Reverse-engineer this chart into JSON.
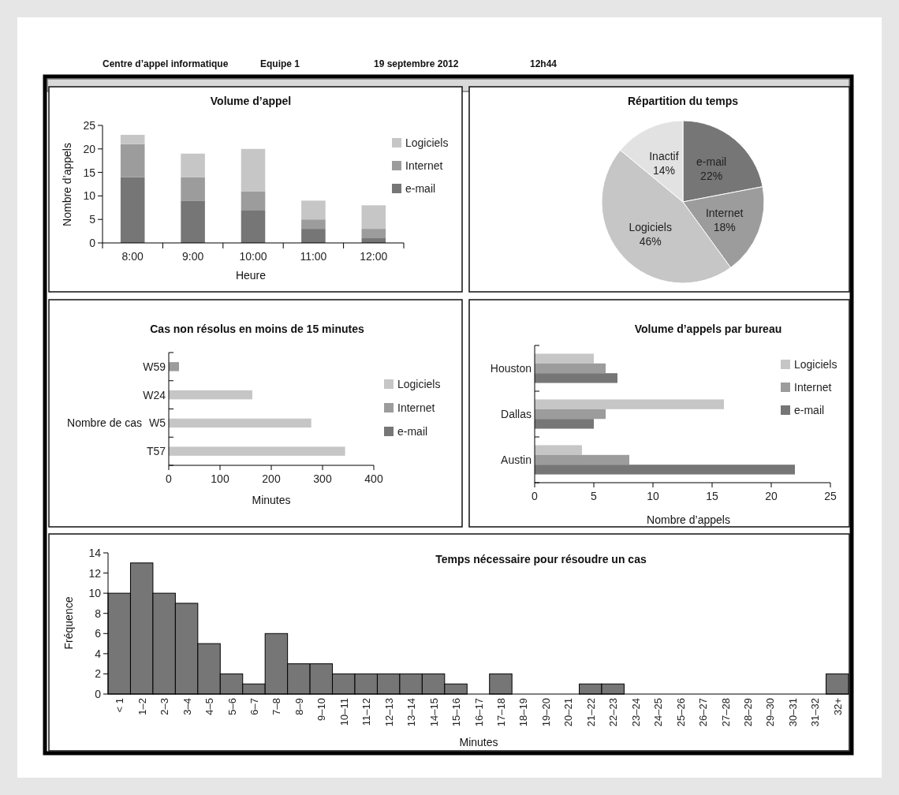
{
  "chart_data": [
    {
      "type": "other",
      "annotations": [
        "Centre d’appel informatique",
        "Equipe 1",
        "19 septembre 2012",
        "12h44"
      ]
    },
    {
      "type": "bar",
      "title": "Volume d’appel",
      "xlabel": "Heure",
      "ylabel": "Nombre d’appels",
      "categories": [
        "8:00",
        "9:00",
        "10:00",
        "11:00",
        "12:00"
      ],
      "stacked": true,
      "legend": "right",
      "ylim": [
        0,
        25
      ],
      "yticks": [
        0,
        5,
        10,
        15,
        20,
        25
      ],
      "series": [
        {
          "name": "e-mail",
          "color": "#767676",
          "values": [
            14,
            9,
            7,
            3,
            1
          ]
        },
        {
          "name": "Internet",
          "color": "#9c9c9c",
          "values": [
            7,
            5,
            4,
            2,
            2
          ]
        },
        {
          "name": "Logiciels",
          "color": "#c6c6c6",
          "values": [
            2,
            5,
            9,
            4,
            5
          ]
        }
      ]
    },
    {
      "type": "pie",
      "title": "Répartition du temps",
      "categories": [
        "e-mail",
        "Internet",
        "Logiciels",
        "Inactif"
      ],
      "values": [
        22,
        18,
        46,
        14
      ],
      "colors": [
        "#767676",
        "#9c9c9c",
        "#c6c6c6",
        "#e2e2e2"
      ],
      "value_labels": [
        "22%",
        "18%",
        "46%",
        "14%"
      ]
    },
    {
      "type": "bar",
      "title": "Cas non résolus en moins de 15 minutes",
      "xlabel": "Minutes",
      "ylabel": "Nombre de cas",
      "orientation": "horizontal",
      "stacked": true,
      "legend": "right",
      "categories": [
        "W59",
        "W24",
        "W5",
        "T57"
      ],
      "xlim": [
        0,
        400
      ],
      "xticks": [
        0,
        100,
        200,
        300,
        400
      ],
      "series": [
        {
          "name": "e-mail",
          "color": "#767676",
          "values": [
            null,
            null,
            null,
            null
          ]
        },
        {
          "name": "Internet",
          "color": "#9c9c9c",
          "values": [
            20,
            null,
            null,
            null
          ]
        },
        {
          "name": "Logiciels",
          "color": "#c6c6c6",
          "values": [
            null,
            163,
            278,
            344
          ]
        }
      ]
    },
    {
      "type": "bar",
      "title": "Volume d’appels par bureau",
      "xlabel": "Nombre d’appels",
      "orientation": "horizontal",
      "legend": "right",
      "categories": [
        "Houston",
        "Dallas",
        "Austin"
      ],
      "xlim": [
        0,
        25
      ],
      "xticks": [
        0,
        5,
        10,
        15,
        20,
        25
      ],
      "series": [
        {
          "name": "Logiciels",
          "color": "#c6c6c6",
          "values": [
            5,
            16,
            4
          ]
        },
        {
          "name": "Internet",
          "color": "#9c9c9c",
          "values": [
            6,
            6,
            8
          ]
        },
        {
          "name": "e-mail",
          "color": "#767676",
          "values": [
            7,
            5,
            22
          ]
        }
      ]
    },
    {
      "type": "bar",
      "title": "Temps nécessaire pour résoudre un cas",
      "xlabel": "Minutes",
      "ylabel": "Fréquence",
      "color": "#767676",
      "ylim": [
        0,
        14
      ],
      "yticks": [
        0,
        2,
        4,
        6,
        8,
        10,
        12,
        14
      ],
      "categories": [
        "< 1",
        "1–2",
        "2–3",
        "3–4",
        "4–5",
        "5–6",
        "6–7",
        "7–8",
        "8–9",
        "9–10",
        "10–11",
        "11–12",
        "12–13",
        "13–14",
        "14–15",
        "15–16",
        "16–17",
        "17–18",
        "18–19",
        "19–20",
        "20–21",
        "21–22",
        "22–23",
        "23–24",
        "24–25",
        "25–26",
        "26–27",
        "27–28",
        "28–29",
        "29–30",
        "30–31",
        "31–32",
        "32+"
      ],
      "values": [
        10,
        13,
        10,
        9,
        5,
        2,
        1,
        6,
        3,
        3,
        2,
        2,
        2,
        2,
        2,
        1,
        0,
        2,
        0,
        0,
        0,
        1,
        1,
        0,
        0,
        0,
        0,
        0,
        0,
        0,
        0,
        0,
        2
      ]
    }
  ]
}
